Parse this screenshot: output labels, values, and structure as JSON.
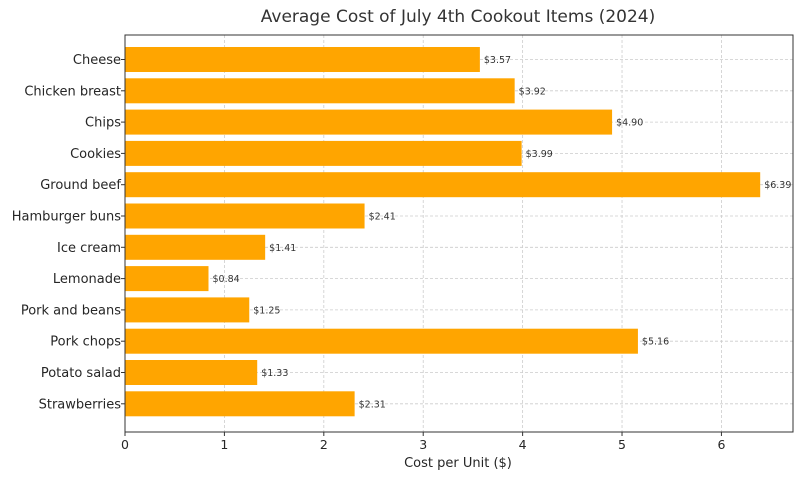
{
  "chart_data": {
    "type": "bar",
    "orientation": "horizontal",
    "title": "Average Cost of July 4th Cookout Items (2024)",
    "xlabel": "Cost per Unit ($)",
    "ylabel": "",
    "xlim": [
      0,
      6.72
    ],
    "xticks": [
      0,
      1,
      2,
      3,
      4,
      5,
      6
    ],
    "grid": true,
    "bar_color": "#FFA500",
    "categories": [
      "Cheese",
      "Chicken breast",
      "Chips",
      "Cookies",
      "Ground beef",
      "Hamburger buns",
      "Ice cream",
      "Lemonade",
      "Pork and beans",
      "Pork chops",
      "Potato salad",
      "Strawberries"
    ],
    "values": [
      3.57,
      3.92,
      4.9,
      3.99,
      6.39,
      2.41,
      1.41,
      0.84,
      1.25,
      5.16,
      1.33,
      2.31
    ],
    "value_labels": [
      "$3.57",
      "$3.92",
      "$4.90",
      "$3.99",
      "$6.39",
      "$2.41",
      "$1.41",
      "$0.84",
      "$1.25",
      "$5.16",
      "$1.33",
      "$2.31"
    ]
  }
}
